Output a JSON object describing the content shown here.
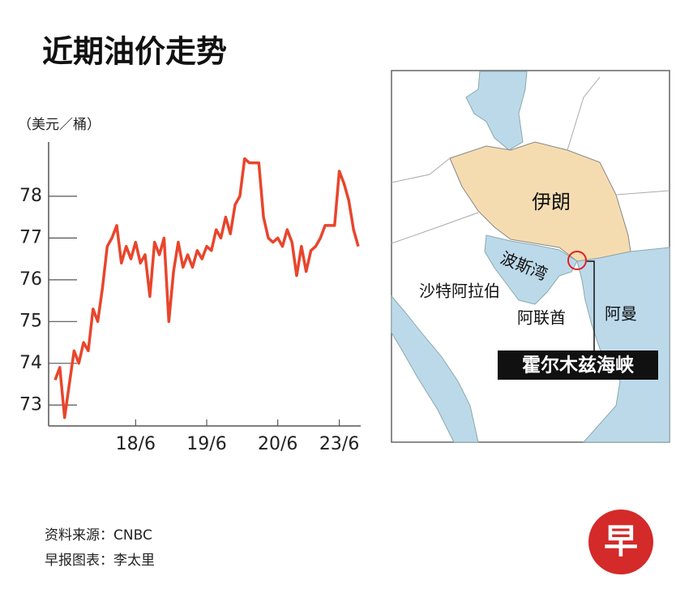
{
  "header": {
    "title": "近期油价走势"
  },
  "chart_data": {
    "type": "line",
    "y_unit": "（美元／桶）",
    "categories": [
      null,
      null,
      null,
      null,
      null,
      null,
      null,
      null,
      null,
      null,
      null,
      null,
      null,
      null,
      null,
      null,
      null,
      "18/6",
      null,
      null,
      null,
      null,
      null,
      null,
      null,
      null,
      null,
      null,
      null,
      null,
      null,
      null,
      "19/6",
      null,
      null,
      null,
      null,
      null,
      null,
      null,
      null,
      null,
      null,
      null,
      null,
      null,
      null,
      "20/6",
      null,
      null,
      null,
      null,
      null,
      null,
      null,
      null,
      null,
      null,
      null,
      null,
      "23/6",
      null,
      null,
      null,
      null
    ],
    "series": [
      {
        "color": "#e8452c",
        "values": [
          73.6,
          73.9,
          72.7,
          73.5,
          74.3,
          74.0,
          74.5,
          74.3,
          75.3,
          75.0,
          75.8,
          76.8,
          77.0,
          77.3,
          76.4,
          76.8,
          76.5,
          76.9,
          76.4,
          76.6,
          75.6,
          76.9,
          76.6,
          77.0,
          75.0,
          76.2,
          76.9,
          76.3,
          76.6,
          76.3,
          76.7,
          76.5,
          76.8,
          76.7,
          77.2,
          77.0,
          77.5,
          77.1,
          77.8,
          78.0,
          78.9,
          78.8,
          78.8,
          78.8,
          77.5,
          77.0,
          76.9,
          77.0,
          76.8,
          77.2,
          76.9,
          76.1,
          76.8,
          76.2,
          76.7,
          76.8,
          77.0,
          77.3,
          77.3,
          77.3,
          78.6,
          78.3,
          77.9,
          77.2,
          76.8
        ]
      }
    ],
    "ylim": [
      72.5,
      79.3
    ],
    "yticks": [
      73,
      74,
      75,
      76,
      77,
      78
    ]
  },
  "map": {
    "labels": {
      "iran": "伊朗",
      "gulf": "波斯湾",
      "saudi": "沙特阿拉伯",
      "uae": "阿联酋",
      "oman": "阿曼",
      "strait": "霍尔木兹海峡"
    }
  },
  "footer": {
    "source": "资料来源：CNBC",
    "credit": "早报图表：李太里"
  },
  "logo": "早"
}
